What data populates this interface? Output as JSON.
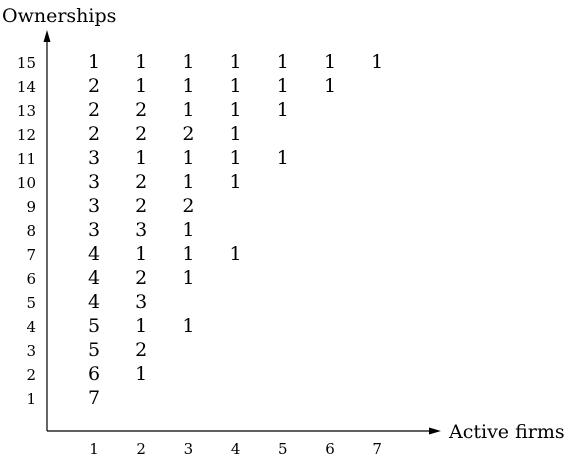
{
  "axes": {
    "y_title": "Ownerships",
    "x_title": "Active firms",
    "x_ticks": [
      "1",
      "2",
      "3",
      "4",
      "5",
      "6",
      "7"
    ],
    "y_ticks": [
      "1",
      "2",
      "3",
      "4",
      "5",
      "6",
      "7",
      "8",
      "9",
      "10",
      "11",
      "12",
      "13",
      "14",
      "15"
    ]
  },
  "grid": [
    {
      "ownerships": "1",
      "values": [
        "7"
      ]
    },
    {
      "ownerships": "2",
      "values": [
        "6",
        "1"
      ]
    },
    {
      "ownerships": "3",
      "values": [
        "5",
        "2"
      ]
    },
    {
      "ownerships": "4",
      "values": [
        "5",
        "1",
        "1"
      ]
    },
    {
      "ownerships": "5",
      "values": [
        "4",
        "3"
      ]
    },
    {
      "ownerships": "6",
      "values": [
        "4",
        "2",
        "1"
      ]
    },
    {
      "ownerships": "7",
      "values": [
        "4",
        "1",
        "1",
        "1"
      ]
    },
    {
      "ownerships": "8",
      "values": [
        "3",
        "3",
        "1"
      ]
    },
    {
      "ownerships": "9",
      "values": [
        "3",
        "2",
        "2"
      ]
    },
    {
      "ownerships": "10",
      "values": [
        "3",
        "2",
        "1",
        "1"
      ]
    },
    {
      "ownerships": "11",
      "values": [
        "3",
        "1",
        "1",
        "1",
        "1"
      ]
    },
    {
      "ownerships": "12",
      "values": [
        "2",
        "2",
        "2",
        "1"
      ]
    },
    {
      "ownerships": "13",
      "values": [
        "2",
        "2",
        "1",
        "1",
        "1"
      ]
    },
    {
      "ownerships": "14",
      "values": [
        "2",
        "1",
        "1",
        "1",
        "1",
        "1"
      ]
    },
    {
      "ownerships": "15",
      "values": [
        "1",
        "1",
        "1",
        "1",
        "1",
        "1",
        "1"
      ]
    }
  ]
}
